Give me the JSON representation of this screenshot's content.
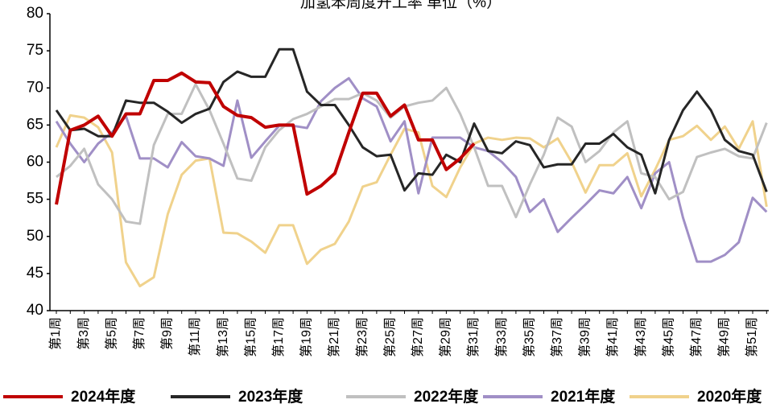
{
  "chart_data": {
    "type": "line",
    "title": "加氢苯周度开工率 单位（%）",
    "categories": [
      "第1周",
      null,
      "第3周",
      null,
      "第5周",
      null,
      "第7周",
      null,
      "第9周",
      null,
      "第11周",
      null,
      "第13周",
      null,
      "第15周",
      null,
      "第17周",
      null,
      "第19周",
      null,
      "第21周",
      null,
      "第23周",
      null,
      "第25周",
      null,
      "第27周",
      null,
      "第29周",
      null,
      "第31周",
      null,
      "第33周",
      null,
      "第35周",
      null,
      "第37周",
      null,
      "第39周",
      null,
      "第41周",
      null,
      "第43周",
      null,
      "第45周",
      null,
      "第47周",
      null,
      "第49周",
      null,
      "第51周",
      null
    ],
    "series": [
      {
        "name": "2024年度",
        "color": "#c00000",
        "values": [
          54.3,
          64.3,
          65,
          66.2,
          63.5,
          66.5,
          66.5,
          71,
          71,
          72,
          70.8,
          70.7,
          67.5,
          66.3,
          66,
          64.7,
          65,
          65,
          55.7,
          56.8,
          58.5,
          64,
          69.3,
          69.3,
          66.2,
          67.7,
          63,
          63,
          59,
          60.5,
          62.5,
          null,
          null,
          null,
          null,
          null,
          null,
          null,
          null,
          null,
          null,
          null,
          null,
          null,
          null,
          null,
          null,
          null,
          null,
          null,
          null,
          null
        ]
      },
      {
        "name": "2023年度",
        "color": "#262626",
        "values": [
          67,
          64.3,
          64.5,
          63.5,
          63.5,
          68.3,
          68,
          68,
          66.8,
          65.3,
          66.5,
          67.2,
          70.8,
          72.2,
          71.5,
          71.5,
          75.2,
          75.2,
          69.5,
          67.7,
          67.7,
          65,
          62,
          60.8,
          61,
          56.2,
          58.5,
          58.3,
          61,
          60,
          65.2,
          61.5,
          61.2,
          62.8,
          62.3,
          59.3,
          59.7,
          59.7,
          62.5,
          62.5,
          63.8,
          62,
          61,
          55.8,
          63,
          67,
          69.5,
          67,
          63,
          61.5,
          61,
          56
        ]
      },
      {
        "name": "2022年度",
        "color": "#c0c0c0",
        "values": [
          58,
          59.5,
          61.8,
          57,
          55,
          52,
          51.7,
          62.3,
          66.5,
          66.5,
          70.5,
          67,
          62.5,
          57.8,
          57.5,
          62,
          64.3,
          65.8,
          66.5,
          67.5,
          68.5,
          68.5,
          69.3,
          68.3,
          66,
          67.5,
          68,
          68.3,
          70,
          66.5,
          62,
          56.8,
          56.8,
          52.6,
          57,
          61,
          66,
          64.8,
          60,
          61.5,
          64,
          65.5,
          58.5,
          58,
          55,
          56,
          60.7,
          61.3,
          61.8,
          60.8,
          60.5,
          65.3
        ]
      },
      {
        "name": "2021年度",
        "color": "#a08fc6",
        "values": [
          65.5,
          62.5,
          60,
          62.5,
          64,
          66.2,
          60.5,
          60.5,
          59.3,
          62.7,
          60.8,
          60.5,
          59.5,
          68.3,
          60.6,
          62.8,
          64.9,
          64.9,
          64.6,
          68.2,
          70,
          71.3,
          68.6,
          67.5,
          62.8,
          65.5,
          55.8,
          63.3,
          63.3,
          63.3,
          62,
          61.5,
          60,
          58,
          53.3,
          55,
          50.6,
          52.5,
          54.3,
          56.2,
          55.8,
          58,
          53.8,
          58.5,
          60,
          52.5,
          46.6,
          46.6,
          47.5,
          49.2,
          55.2,
          53.3
        ]
      },
      {
        "name": "2020年度",
        "color": "#f0d28c",
        "values": [
          62,
          66.3,
          66,
          64.7,
          61.3,
          46.5,
          43.3,
          44.5,
          53,
          58.3,
          60.2,
          60.5,
          50.5,
          50.4,
          49.3,
          47.8,
          51.5,
          51.5,
          46.3,
          48.2,
          49,
          52,
          56.7,
          57.3,
          61,
          64.5,
          64,
          56.8,
          55.3,
          59.3,
          62.5,
          63.3,
          63,
          63.3,
          63.2,
          62,
          63.2,
          60,
          55.9,
          59.6,
          59.6,
          61.2,
          55.4,
          59,
          63,
          63.5,
          64.9,
          63,
          64.8,
          61.8,
          65.5,
          54
        ]
      }
    ],
    "ylim": [
      40,
      80
    ],
    "yticks": [
      40,
      45,
      50,
      55,
      60,
      65,
      70,
      75,
      80
    ],
    "grid": false,
    "legend": "bottom"
  }
}
